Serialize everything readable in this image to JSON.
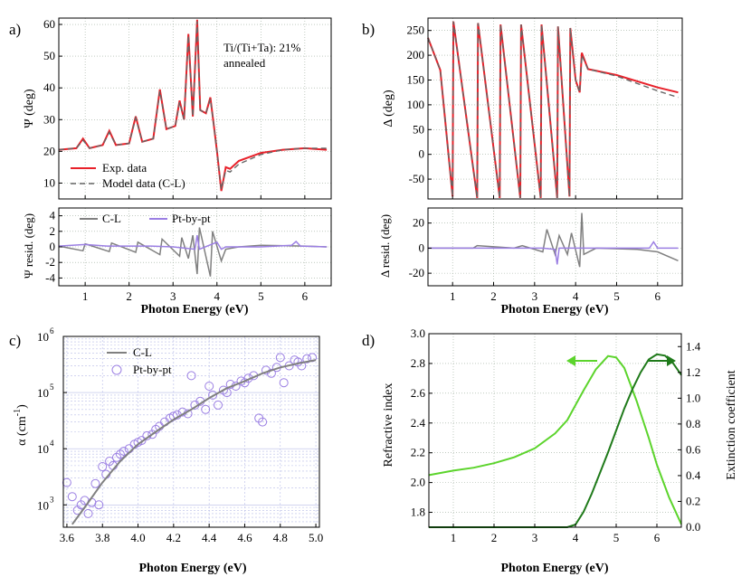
{
  "colors": {
    "exp": "#e8212a",
    "model": "#666666",
    "cl": "#808080",
    "pt": "#9b7fe3",
    "n": "#5cd42c",
    "k": "#1f7a1a",
    "grid": "#9aaa9a",
    "gridc": "#b8bce8"
  },
  "chart_data": [
    {
      "panel": "a",
      "panel_label": "a)",
      "type": "line",
      "title": "",
      "annotation": [
        "Ti/(Ti+Ta): 21%",
        "annealed"
      ],
      "xlabel": "Photon Energy (eV)",
      "ylabel": "Ψ (deg)",
      "ylim": [
        5,
        62
      ],
      "xlim": [
        0.4,
        6.6
      ],
      "yticks": [
        10,
        20,
        30,
        40,
        50,
        60
      ],
      "xticks": [
        1,
        2,
        3,
        4,
        5,
        6
      ],
      "legend": [
        "Exp. data",
        "Model data (C-L)"
      ],
      "series": [
        {
          "name": "Exp. data",
          "x": [
            0.4,
            0.8,
            0.95,
            1.1,
            1.4,
            1.55,
            1.7,
            2.0,
            2.15,
            2.3,
            2.55,
            2.7,
            2.85,
            3.05,
            3.15,
            3.25,
            3.35,
            3.45,
            3.55,
            3.62,
            3.75,
            3.85,
            3.93,
            4.0,
            4.1,
            4.2,
            4.3,
            4.5,
            5.0,
            5.5,
            6.0,
            6.5
          ],
          "y": [
            20.5,
            21,
            24,
            21,
            22,
            26.5,
            22,
            22.5,
            31,
            23,
            24,
            39.5,
            27,
            28,
            36,
            30,
            57,
            31,
            61.5,
            33,
            32,
            37,
            28,
            20,
            7.5,
            15,
            14.5,
            17,
            19.5,
            20.5,
            21,
            20.5
          ]
        },
        {
          "name": "Model data (C-L)",
          "x": [
            0.4,
            0.8,
            0.95,
            1.1,
            1.4,
            1.55,
            1.7,
            2.0,
            2.15,
            2.3,
            2.55,
            2.7,
            2.85,
            3.05,
            3.15,
            3.25,
            3.35,
            3.45,
            3.55,
            3.62,
            3.75,
            3.85,
            3.93,
            4.0,
            4.1,
            4.2,
            4.3,
            4.5,
            5.0,
            5.5,
            6.0,
            6.5
          ],
          "y": [
            20.5,
            21,
            23.5,
            21,
            22,
            26,
            22,
            22.5,
            30.5,
            23,
            24,
            39,
            27,
            28,
            35.5,
            30,
            56.5,
            31,
            61,
            33,
            32,
            36.5,
            28,
            20,
            8,
            14,
            13.5,
            16,
            19,
            20.5,
            21,
            21
          ]
        }
      ]
    },
    {
      "panel": "a-resid",
      "type": "line",
      "xlabel": "Photon Energy (eV)",
      "ylabel": "Ψ resid. (deg)",
      "ylim": [
        -5,
        5
      ],
      "xlim": [
        0.4,
        6.6
      ],
      "yticks": [
        -4,
        -2,
        0,
        2,
        4
      ],
      "xticks": [
        1,
        2,
        3,
        4,
        5,
        6
      ],
      "legend": [
        "C-L",
        "Pt-by-pt"
      ],
      "series": [
        {
          "name": "C-L",
          "x": [
            0.4,
            0.95,
            1.0,
            1.55,
            1.6,
            2.15,
            2.2,
            2.7,
            2.75,
            3.15,
            3.2,
            3.35,
            3.45,
            3.55,
            3.6,
            3.85,
            3.9,
            4.1,
            4.2,
            4.5,
            5.0,
            6.0,
            6.5
          ],
          "y": [
            0.1,
            -0.5,
            0.4,
            -0.6,
            0.5,
            -0.7,
            0.6,
            -1,
            1,
            -1.2,
            1.2,
            -1.5,
            1.5,
            -3.5,
            2.5,
            -3.8,
            2,
            -1.8,
            -0.3,
            0,
            0.2,
            0.1,
            0
          ]
        },
        {
          "name": "Pt-by-pt",
          "x": [
            0.4,
            1.0,
            1.5,
            2.0,
            2.5,
            3.0,
            3.5,
            3.55,
            3.6,
            4.0,
            4.1,
            4.2,
            5.0,
            5.7,
            5.8,
            5.9,
            6.5
          ],
          "y": [
            0.1,
            0.3,
            0.1,
            0.1,
            0.1,
            0,
            -0.3,
            1.5,
            -0.3,
            0.6,
            -0.3,
            0,
            0,
            0.2,
            0.7,
            0.1,
            0
          ]
        }
      ]
    },
    {
      "panel": "b",
      "panel_label": "b)",
      "type": "line",
      "xlabel": "Photon Energy (eV)",
      "ylabel": "Δ (deg)",
      "ylim": [
        -90,
        275
      ],
      "xlim": [
        0.4,
        6.6
      ],
      "yticks": [
        -50,
        0,
        50,
        100,
        150,
        200,
        250
      ],
      "xticks": [
        1,
        2,
        3,
        4,
        5,
        6
      ],
      "series": [
        {
          "name": "Exp. data",
          "x": [
            0.4,
            0.7,
            1.0,
            1.02,
            1.6,
            1.62,
            2.15,
            2.17,
            2.65,
            2.67,
            3.15,
            3.17,
            3.55,
            3.57,
            3.85,
            3.87,
            4.0,
            4.1,
            4.15,
            4.3,
            5.0,
            6.0,
            6.5
          ],
          "y": [
            235,
            170,
            -85,
            268,
            -88,
            265,
            -88,
            262,
            -88,
            262,
            -88,
            262,
            -88,
            258,
            -85,
            255,
            150,
            125,
            205,
            172,
            160,
            135,
            125
          ]
        },
        {
          "name": "Model data (C-L)",
          "x": [
            0.4,
            0.7,
            1.0,
            1.02,
            1.6,
            1.62,
            2.15,
            2.17,
            2.65,
            2.67,
            3.15,
            3.17,
            3.55,
            3.57,
            3.85,
            3.87,
            4.0,
            4.1,
            4.15,
            4.3,
            5.0,
            6.0,
            6.5
          ],
          "y": [
            235,
            170,
            -85,
            268,
            -88,
            265,
            -88,
            262,
            -88,
            262,
            -88,
            262,
            -88,
            258,
            -85,
            255,
            150,
            125,
            200,
            172,
            158,
            128,
            115
          ]
        }
      ]
    },
    {
      "panel": "b-resid",
      "type": "line",
      "xlabel": "Photon Energy (eV)",
      "ylabel": "Δ resid. (deg)",
      "ylim": [
        -30,
        32
      ],
      "xlim": [
        0.4,
        6.6
      ],
      "yticks": [
        -20,
        0,
        20
      ],
      "xticks": [
        1,
        2,
        3,
        4,
        5,
        6
      ],
      "series": [
        {
          "name": "C-L",
          "x": [
            0.4,
            1.5,
            1.6,
            2.5,
            2.7,
            3.2,
            3.3,
            3.5,
            3.6,
            3.8,
            3.9,
            4.1,
            4.15,
            4.2,
            4.5,
            5.5,
            6.0,
            6.5
          ],
          "y": [
            0,
            0,
            2,
            0,
            2,
            -3,
            15,
            -5,
            10,
            -5,
            12,
            -15,
            28,
            -5,
            0,
            -1,
            -3,
            -10
          ]
        },
        {
          "name": "Pt-by-pt",
          "x": [
            0.4,
            1.5,
            2.5,
            3.2,
            3.5,
            3.55,
            3.6,
            4.0,
            4.2,
            5.0,
            5.8,
            5.9,
            6.0,
            6.5
          ],
          "y": [
            0,
            0,
            0,
            0,
            -1,
            -13,
            0,
            0,
            0,
            0,
            0,
            5,
            0,
            0
          ]
        }
      ]
    },
    {
      "panel": "c",
      "panel_label": "c)",
      "type": "scatter",
      "xlabel": "Photon Energy (eV)",
      "ylabel": "α (cm",
      "ylabel_sup": "-1",
      "ylabel_end": ")",
      "yscale": "log",
      "ylim": [
        400,
        1000000
      ],
      "xlim": [
        3.58,
        5.02
      ],
      "ytick_base": "10",
      "ytick_exps": [
        "3",
        "4",
        "5",
        "6"
      ],
      "xticks": [
        "3.6",
        "3.8",
        "4.0",
        "4.2",
        "4.4",
        "4.6",
        "4.8",
        "5.0"
      ],
      "legend": [
        "C-L",
        "Pt-by-pt"
      ],
      "series": [
        {
          "name": "C-L",
          "type": "line",
          "x": [
            3.63,
            3.7,
            3.8,
            3.9,
            4.0,
            4.1,
            4.2,
            4.3,
            4.4,
            4.5,
            4.6,
            4.7,
            4.8,
            4.9,
            5.0
          ],
          "y": [
            450,
            900,
            2500,
            6000,
            12000,
            20000,
            33000,
            50000,
            80000,
            120000,
            160000,
            220000,
            280000,
            330000,
            380000
          ]
        },
        {
          "name": "Pt-by-pt",
          "type": "scatter",
          "x": [
            3.6,
            3.63,
            3.66,
            3.68,
            3.7,
            3.72,
            3.74,
            3.76,
            3.78,
            3.8,
            3.82,
            3.84,
            3.86,
            3.88,
            3.9,
            3.92,
            3.95,
            3.98,
            4.0,
            4.02,
            4.05,
            4.08,
            4.1,
            4.12,
            4.15,
            4.18,
            4.2,
            4.22,
            4.25,
            4.28,
            4.3,
            4.32,
            4.35,
            4.38,
            4.4,
            4.42,
            4.45,
            4.48,
            4.5,
            4.52,
            4.55,
            4.58,
            4.6,
            4.62,
            4.65,
            4.68,
            4.7,
            4.72,
            4.75,
            4.78,
            4.8,
            4.82,
            4.85,
            4.88,
            4.9,
            4.92,
            4.95,
            4.98
          ],
          "y": [
            2500,
            1400,
            800,
            1000,
            1200,
            700,
            1100,
            2400,
            1000,
            4800,
            3500,
            6000,
            5000,
            7000,
            8000,
            9000,
            10000,
            12000,
            13000,
            14000,
            17000,
            18000,
            22000,
            25000,
            30000,
            35000,
            38000,
            40000,
            45000,
            42000,
            200000,
            60000,
            70000,
            50000,
            130000,
            90000,
            60000,
            110000,
            100000,
            140000,
            130000,
            160000,
            150000,
            180000,
            200000,
            35000,
            30000,
            250000,
            220000,
            280000,
            420000,
            150000,
            300000,
            380000,
            350000,
            300000,
            400000,
            420000
          ]
        }
      ]
    },
    {
      "panel": "d",
      "panel_label": "d)",
      "type": "line",
      "xlabel": "Photon Energy (eV)",
      "ylabel": "Refractive index",
      "ylabel_right": "Extinction coefficient",
      "ylim": [
        1.7,
        3.0
      ],
      "ylim_right": [
        0,
        1.5
      ],
      "xlim": [
        0.4,
        6.6
      ],
      "yticks": [
        "1.8",
        "2.0",
        "2.2",
        "2.4",
        "2.6",
        "2.8",
        "3.0"
      ],
      "yticks_right": [
        "0.0",
        "0.2",
        "0.4",
        "0.6",
        "0.8",
        "1.0",
        "1.2",
        "1.4"
      ],
      "xticks": [
        1,
        2,
        3,
        4,
        5,
        6
      ],
      "series": [
        {
          "name": "n",
          "x": [
            0.4,
            1.0,
            1.5,
            2.0,
            2.5,
            3.0,
            3.5,
            3.8,
            4.0,
            4.2,
            4.5,
            4.8,
            5.0,
            5.2,
            5.5,
            5.8,
            6.0,
            6.3,
            6.6
          ],
          "y": [
            2.05,
            2.08,
            2.1,
            2.13,
            2.17,
            2.23,
            2.33,
            2.42,
            2.52,
            2.62,
            2.76,
            2.85,
            2.84,
            2.77,
            2.55,
            2.3,
            2.12,
            1.9,
            1.72
          ]
        },
        {
          "name": "k",
          "axis": "right",
          "x": [
            0.4,
            1.0,
            2.0,
            3.0,
            3.8,
            4.0,
            4.2,
            4.4,
            4.6,
            4.8,
            5.0,
            5.2,
            5.4,
            5.6,
            5.8,
            6.0,
            6.2,
            6.4,
            6.6
          ],
          "y": [
            0,
            0,
            0,
            0,
            0,
            0.02,
            0.12,
            0.26,
            0.42,
            0.58,
            0.75,
            0.92,
            1.07,
            1.2,
            1.3,
            1.34,
            1.33,
            1.27,
            1.18
          ]
        }
      ]
    }
  ]
}
